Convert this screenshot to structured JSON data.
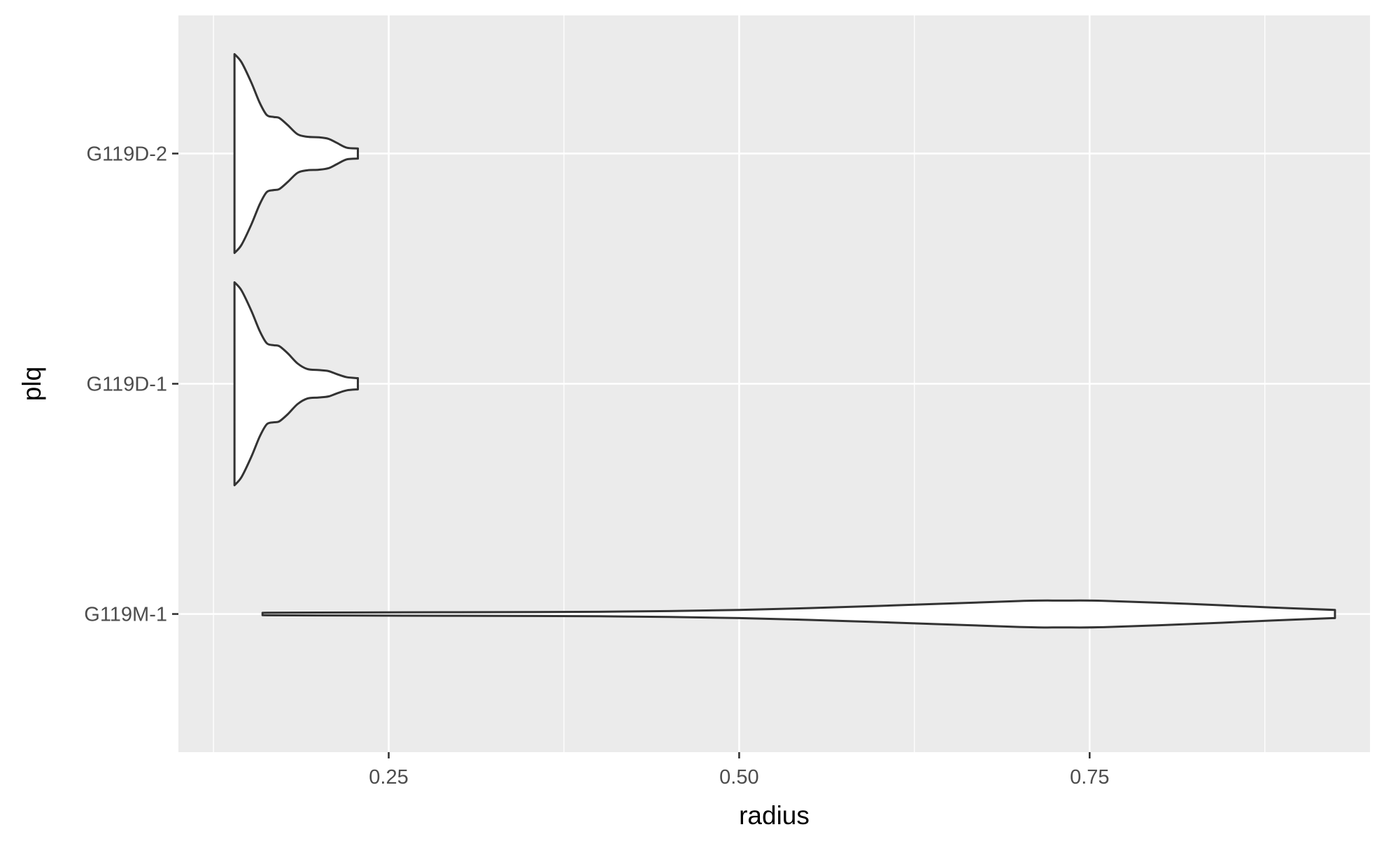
{
  "chart_data": {
    "type": "violin",
    "orientation": "horizontal",
    "title": "",
    "xlabel": "radius",
    "ylabel": "plq",
    "xlim": [
      0.1,
      0.95
    ],
    "x_ticks": [
      0.25,
      0.5,
      0.75
    ],
    "x_tick_labels": [
      "0.25",
      "0.50",
      "0.75"
    ],
    "categories": [
      "G119M-1",
      "G119D-1",
      "G119D-2"
    ],
    "grid": true,
    "legend": "none",
    "colors": {
      "panel_background": "#EBEBEB",
      "grid": "#FFFFFF",
      "violin_fill": "#FFFFFF",
      "violin_outline": "#333333",
      "tick_label": "#4D4D4D",
      "axis_title": "#000000"
    },
    "series": [
      {
        "category": "G119M-1",
        "min": 0.16,
        "max": 0.925,
        "density_profile": [
          [
            0.16,
            0.012
          ],
          [
            0.2,
            0.014
          ],
          [
            0.3,
            0.018
          ],
          [
            0.4,
            0.022
          ],
          [
            0.5,
            0.04
          ],
          [
            0.6,
            0.08
          ],
          [
            0.7,
            0.128
          ],
          [
            0.73,
            0.132
          ],
          [
            0.76,
            0.13
          ],
          [
            0.82,
            0.1
          ],
          [
            0.88,
            0.064
          ],
          [
            0.925,
            0.04
          ]
        ]
      },
      {
        "category": "G119D-1",
        "min": 0.14,
        "max": 0.228,
        "density_profile": [
          [
            0.14,
            1.0
          ],
          [
            0.145,
            0.92
          ],
          [
            0.152,
            0.72
          ],
          [
            0.158,
            0.52
          ],
          [
            0.163,
            0.4
          ],
          [
            0.168,
            0.38
          ],
          [
            0.172,
            0.37
          ],
          [
            0.178,
            0.3
          ],
          [
            0.185,
            0.2
          ],
          [
            0.192,
            0.145
          ],
          [
            0.2,
            0.135
          ],
          [
            0.207,
            0.125
          ],
          [
            0.213,
            0.095
          ],
          [
            0.22,
            0.065
          ],
          [
            0.228,
            0.055
          ]
        ]
      },
      {
        "category": "G119D-2",
        "min": 0.14,
        "max": 0.228,
        "density_profile": [
          [
            0.14,
            0.98
          ],
          [
            0.145,
            0.9
          ],
          [
            0.152,
            0.7
          ],
          [
            0.158,
            0.5
          ],
          [
            0.163,
            0.38
          ],
          [
            0.168,
            0.36
          ],
          [
            0.172,
            0.35
          ],
          [
            0.178,
            0.28
          ],
          [
            0.185,
            0.19
          ],
          [
            0.192,
            0.165
          ],
          [
            0.2,
            0.16
          ],
          [
            0.207,
            0.145
          ],
          [
            0.213,
            0.105
          ],
          [
            0.22,
            0.058
          ],
          [
            0.228,
            0.05
          ]
        ]
      }
    ]
  }
}
